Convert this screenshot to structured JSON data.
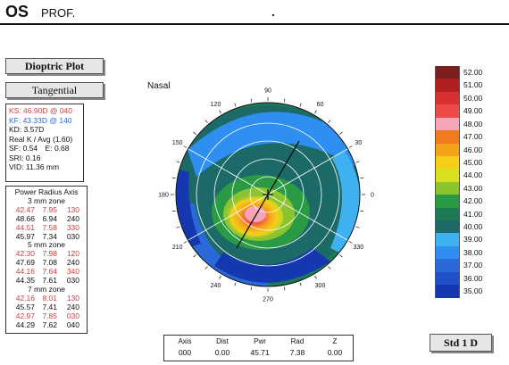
{
  "header": {
    "eye": "OS",
    "mode": "PROF."
  },
  "buttons": {
    "dioptric": "Dioptric Plot",
    "tangential": "Tangential",
    "std": "Std 1 D"
  },
  "nasal_label": "Nasal",
  "info": {
    "ks": "KS: 46.90D @ 040",
    "kf": "KF: 43.33D @ 140",
    "kd": "KD: 3.57D",
    "real_k": "Real K / Avg (1.60)",
    "sf_label": "SF:",
    "sf": "0.54",
    "e_label": "E:",
    "e": "0.68",
    "sri_label": "SRI:",
    "sri": "0.16",
    "vid_label": "VID:",
    "vid": "11.36 mm"
  },
  "power_radius": {
    "title": "Power Radius Axis",
    "zones": [
      {
        "label": "3 mm zone",
        "rows": [
          {
            "p": "42.47",
            "r": "7.95",
            "a": "130",
            "red": true
          },
          {
            "p": "48.66",
            "r": "6.94",
            "a": "240",
            "red": false
          },
          {
            "p": "44.51",
            "r": "7.58",
            "a": "330",
            "red": true
          },
          {
            "p": "45.97",
            "r": "7.34",
            "a": "030",
            "red": false
          }
        ]
      },
      {
        "label": "5 mm zone",
        "rows": [
          {
            "p": "42.30",
            "r": "7.98",
            "a": "120",
            "red": true
          },
          {
            "p": "47.69",
            "r": "7.08",
            "a": "240",
            "red": false
          },
          {
            "p": "44.16",
            "r": "7.64",
            "a": "340",
            "red": true
          },
          {
            "p": "44.35",
            "r": "7.61",
            "a": "030",
            "red": false
          }
        ]
      },
      {
        "label": "7 mm zone",
        "rows": [
          {
            "p": "42.16",
            "r": "8.01",
            "a": "130",
            "red": true
          },
          {
            "p": "45.57",
            "r": "7.41",
            "a": "240",
            "red": false
          },
          {
            "p": "42.97",
            "r": "7.85",
            "a": "030",
            "red": true
          },
          {
            "p": "44.29",
            "r": "7.62",
            "a": "040",
            "red": false
          }
        ]
      }
    ]
  },
  "axis_labels": [
    "90",
    "60",
    "30",
    "0",
    "330",
    "300",
    "270",
    "240",
    "210",
    "180",
    "150",
    "120"
  ],
  "readout": {
    "headers": [
      "Axis",
      "Dist",
      "Pwr",
      "Rad",
      "Z"
    ],
    "values": [
      "000",
      "0.00",
      "45.71",
      "7.38",
      "0.00"
    ]
  },
  "scale": {
    "labels": [
      "52.00",
      "51.00",
      "50.00",
      "49.00",
      "48.00",
      "47.00",
      "46.00",
      "45.00",
      "44.00",
      "43.00",
      "42.00",
      "41.00",
      "40.00",
      "39.00",
      "38.00",
      "37.00",
      "36.00",
      "35.00"
    ],
    "colors": [
      "#7b1f1f",
      "#b02020",
      "#d83030",
      "#ef4a4a",
      "#f6a5b8",
      "#f07a1e",
      "#f5a21b",
      "#f4cf18",
      "#d8e020",
      "#8cc430",
      "#2a9a45",
      "#1d7a55",
      "#1c6a68",
      "#3fb0f0",
      "#2e8ff0",
      "#2a6ad8",
      "#1f50c8",
      "#1537b0"
    ]
  }
}
